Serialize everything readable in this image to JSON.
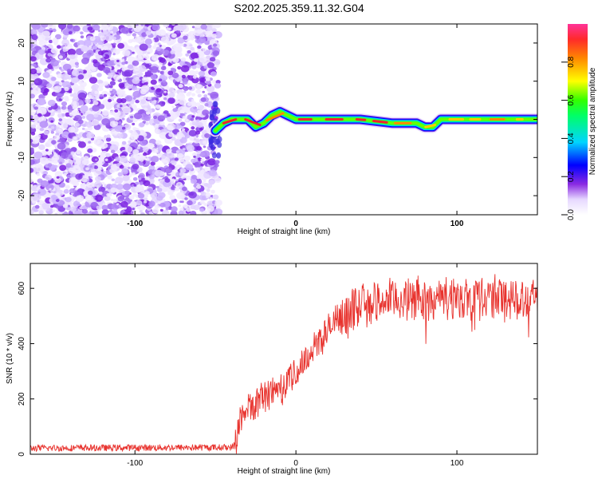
{
  "title": "S202.2025.359.11.32.G04",
  "chart_data": [
    {
      "type": "heatmap",
      "name": "spectrogram",
      "xlabel": "Height of straight line (km)",
      "ylabel": "Frequency (Hz)",
      "xlim": [
        -165,
        150
      ],
      "ylim": [
        -25,
        25
      ],
      "xticks": [
        -100,
        0,
        100
      ],
      "yticks": [
        -20,
        -10,
        0,
        10,
        20
      ],
      "noise_region_x": [
        -165,
        -48
      ],
      "ridge": [
        {
          "x": -50,
          "f": -3
        },
        {
          "x": -45,
          "f": -1
        },
        {
          "x": -40,
          "f": 0
        },
        {
          "x": -30,
          "f": 0
        },
        {
          "x": -25,
          "f": -2
        },
        {
          "x": -20,
          "f": -1
        },
        {
          "x": -15,
          "f": 1
        },
        {
          "x": -10,
          "f": 2
        },
        {
          "x": -5,
          "f": 1
        },
        {
          "x": 0,
          "f": 0
        },
        {
          "x": 20,
          "f": 0
        },
        {
          "x": 40,
          "f": 0
        },
        {
          "x": 60,
          "f": -1
        },
        {
          "x": 75,
          "f": -1
        },
        {
          "x": 80,
          "f": -2
        },
        {
          "x": 85,
          "f": -2
        },
        {
          "x": 90,
          "f": 0
        },
        {
          "x": 120,
          "f": 0
        },
        {
          "x": 150,
          "f": 0
        }
      ],
      "colorbar": {
        "label": "Normalized spectral amplitude",
        "range": [
          0,
          1
        ],
        "ticks": [
          "0.0",
          "0.2",
          "0.4",
          "0.6",
          "0.8"
        ]
      }
    },
    {
      "type": "line",
      "name": "snr",
      "xlabel": "Height of straight line (km)",
      "ylabel": "SNR (10 * v/v)",
      "xlim": [
        -165,
        150
      ],
      "ylim": [
        0,
        690
      ],
      "xticks": [
        -100,
        0,
        100
      ],
      "yticks": [
        0,
        200,
        400,
        600
      ],
      "color": "#e8332e",
      "trend": [
        {
          "x": -165,
          "y": 22
        },
        {
          "x": -40,
          "y": 25
        },
        {
          "x": -37,
          "y": 40
        },
        {
          "x": -35,
          "y": 120
        },
        {
          "x": -30,
          "y": 165
        },
        {
          "x": -20,
          "y": 210
        },
        {
          "x": -10,
          "y": 245
        },
        {
          "x": 0,
          "y": 290
        },
        {
          "x": 10,
          "y": 380
        },
        {
          "x": 20,
          "y": 450
        },
        {
          "x": 30,
          "y": 500
        },
        {
          "x": 40,
          "y": 540
        },
        {
          "x": 60,
          "y": 560
        },
        {
          "x": 100,
          "y": 565
        },
        {
          "x": 150,
          "y": 570
        }
      ]
    }
  ]
}
